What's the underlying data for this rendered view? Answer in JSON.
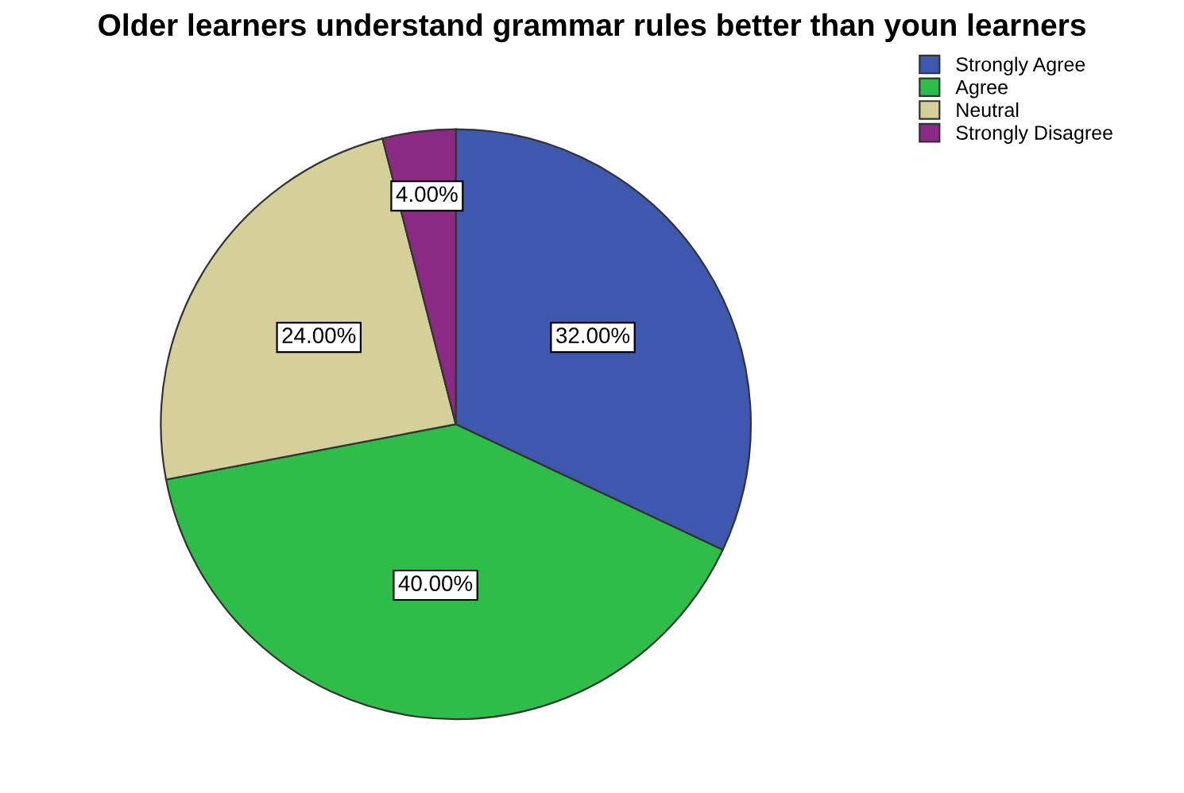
{
  "chart_data": {
    "type": "pie",
    "title": "Older learners understand grammar rules better than youn learners",
    "categories": [
      "Strongly Agree",
      "Agree",
      "Neutral",
      "Strongly Disagree"
    ],
    "values": [
      32,
      40,
      24,
      4
    ],
    "value_labels": [
      "32.00%",
      "40.00%",
      "24.00%",
      "4.00%"
    ],
    "colors": [
      "#3e58b0",
      "#2fbd4a",
      "#d5cf9a",
      "#8a2a85"
    ],
    "legend": "top right"
  }
}
